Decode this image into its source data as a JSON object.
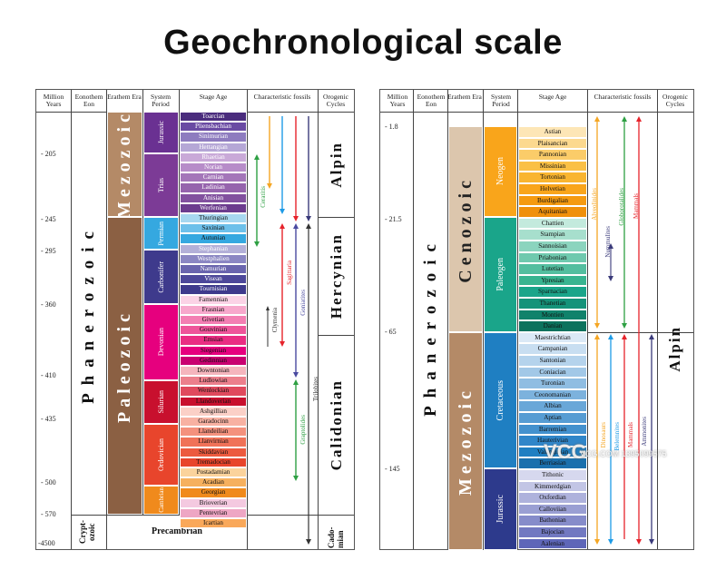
{
  "title": "Geochronological scale",
  "headers": {
    "million_years": "Million Years",
    "eonothem": "Eonothem Eon",
    "erathem": "Erathem Era",
    "system": "System Period",
    "stage": "Stage Age",
    "fossils": "Characteristic fossils",
    "orogenic": "Orogenic Cycles"
  },
  "left": {
    "ticks": [
      "- 205",
      "- 245",
      "- 295",
      "- 360",
      "- 410",
      "- 435",
      "- 500",
      "- 570",
      "-4500"
    ],
    "eon": "Phanerozoic",
    "eon_crypt": "Crypt-ozoic",
    "eras": [
      "Mezozoic",
      "Paleozoic"
    ],
    "precambrian": "Precambrian",
    "systems": [
      "Jurassic",
      "Trias",
      "Permian",
      "Carbonifer",
      "Devonian",
      "Silurian",
      "Ordovician",
      "Cambrian"
    ],
    "stages": [
      "Toarcian",
      "Pliensbachian",
      "Sinimurian",
      "Hettangian",
      "Rhaetian",
      "Norian",
      "Carnian",
      "Ladinian",
      "Anisian",
      "Werfenian",
      "Thuringian",
      "Saxinian",
      "Autunian",
      "Stephanian",
      "Westphalien",
      "Namurian",
      "Visean",
      "Tournisian",
      "Famennian",
      "Frasnian",
      "Givetian",
      "Gouvinian",
      "Emsian",
      "Siegenian",
      "Gedinnian",
      "Downtonian",
      "Ludlowian",
      "Wenlockian",
      "Llandoverian",
      "Ashgillian",
      "Garadocinn",
      "Llandeilian",
      "Llanvirnian",
      "Skiddavian",
      "Tremadocian",
      "Postadamian",
      "Acadian",
      "Georgian",
      "Brioverian",
      "Pentevrian",
      "Icartian"
    ],
    "fossils": [
      "Ceratitis",
      "Clymenia",
      "Sagittaria",
      "Goniatites",
      "Graptolides",
      "Trilobites"
    ],
    "cycles": [
      "Alpin",
      "Hercynian",
      "Calidonian",
      "Cado-mian"
    ]
  },
  "right": {
    "ticks": [
      "- 1.8",
      "- 21.5",
      "- 65",
      "- 145"
    ],
    "eon": "Phanerozoic",
    "eras": [
      "Cenozoic",
      "Mezozoic"
    ],
    "systems": [
      "Neogen",
      "Paleogen",
      "Cretaceous",
      "Jurassic"
    ],
    "stages": [
      "Astian",
      "Plaisancian",
      "Pannonian",
      "Missinian",
      "Tortonian",
      "Helvetian",
      "Burdigalian",
      "Aquitanian",
      "Chattien",
      "Stampian",
      "Sannoisian",
      "Priabonian",
      "Lutetian",
      "Ypresian",
      "Sparnacian",
      "Thanetian",
      "Montien",
      "Danian",
      "Maestrichtian",
      "Campanian",
      "Santonian",
      "Coniacian",
      "Turonian",
      "Ceonomanian",
      "Albian",
      "Aptian",
      "Barremian",
      "Hauterivian",
      "Valanginian",
      "Berriasian",
      "Tithonic",
      "Kimmerdgian",
      "Oxfordian",
      "Calloviian",
      "Bathonian",
      "Bajocian",
      "Aalenian"
    ],
    "fossils": [
      "Alveolinides",
      "Nummulites",
      "Globorotalides",
      "Mammals",
      "Dinosaurs",
      "Belemnites",
      "Mammals",
      "Ammonites"
    ],
    "cycle": "Alpin"
  },
  "watermark": {
    "logo": "VCG",
    "text": "VCG.COM 1395099575"
  },
  "colors": {
    "jurassic_left": "#6a3192",
    "trias": "#7c3b96",
    "permian": "#35a8e0",
    "carbonifer": "#3e3a8c",
    "devonian": "#e6007e",
    "silurian": "#c8102e",
    "ordovician": "#e8452c",
    "cambrian": "#f08a1c",
    "mezozoic": "#b48a67",
    "paleozoic": "#8b6043",
    "cenozoic": "#dcc6ad",
    "neogen": "#f9a51b",
    "paleogen": "#1aa58a",
    "cretaceous": "#1f7fc2",
    "jurassic_right": "#2d3a8c"
  }
}
